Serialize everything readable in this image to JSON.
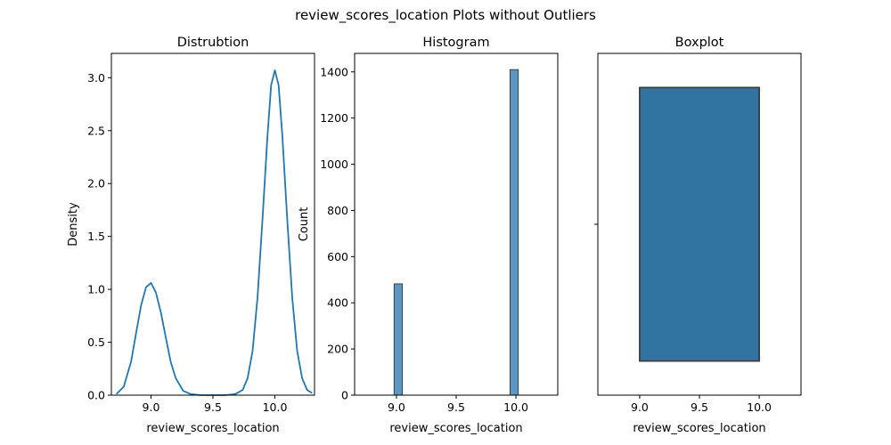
{
  "figure": {
    "title": "review_scores_location Plots without Outliers"
  },
  "colors": {
    "line": "#1f77b4",
    "hist_fill": "#5a96c1",
    "hist_edge": "#2b2b2b",
    "box_fill": "#3274a1",
    "box_edge": "#3f3f3f",
    "axes": "#000000"
  },
  "chart_data": [
    {
      "type": "line",
      "title": "Distrubtion",
      "xlabel": "review_scores_location",
      "ylabel": "Density",
      "xlim": [
        8.68,
        10.32
      ],
      "ylim": [
        0,
        3.23
      ],
      "xticks": [
        9.0,
        9.5,
        10.0
      ],
      "xtick_labels": [
        "9.0",
        "9.5",
        "10.0"
      ],
      "yticks": [
        0,
        0.5,
        1.0,
        1.5,
        2.0,
        2.5,
        3.0
      ],
      "ytick_labels": [
        "0.0",
        "0.5",
        "1.0",
        "1.5",
        "2.0",
        "2.5",
        "3.0"
      ],
      "series": [
        {
          "x": [
            8.72,
            8.78,
            8.84,
            8.88,
            8.92,
            8.96,
            9.0,
            9.04,
            9.08,
            9.12,
            9.16,
            9.2,
            9.26,
            9.32,
            9.4,
            9.5,
            9.6,
            9.68,
            9.74,
            9.78,
            9.82,
            9.86,
            9.9,
            9.94,
            9.97,
            10.0,
            10.03,
            10.06,
            10.1,
            10.14,
            10.18,
            10.22,
            10.26,
            10.3
          ],
          "y": [
            0.01,
            0.08,
            0.32,
            0.59,
            0.85,
            1.02,
            1.06,
            0.97,
            0.78,
            0.54,
            0.31,
            0.16,
            0.04,
            0.01,
            0.0,
            0.0,
            0.0,
            0.01,
            0.05,
            0.16,
            0.42,
            0.92,
            1.66,
            2.45,
            2.93,
            3.07,
            2.93,
            2.45,
            1.66,
            0.92,
            0.42,
            0.16,
            0.05,
            0.02
          ]
        }
      ]
    },
    {
      "type": "bar",
      "title": "Histogram",
      "xlabel": "review_scores_location",
      "ylabel": "Count",
      "xlim": [
        8.65,
        10.35
      ],
      "ylim": [
        0,
        1480
      ],
      "xticks": [
        9.0,
        9.5,
        10.0
      ],
      "xtick_labels": [
        "9.0",
        "9.5",
        "10.0"
      ],
      "yticks": [
        0,
        200,
        400,
        600,
        800,
        1000,
        1200,
        1400
      ],
      "ytick_labels": [
        "0",
        "200",
        "400",
        "600",
        "800",
        "1000",
        "1200",
        "1400"
      ],
      "bars": [
        {
          "x0": 8.98,
          "x1": 9.05,
          "value": 482
        },
        {
          "x0": 9.95,
          "x1": 10.02,
          "value": 1410
        }
      ]
    },
    {
      "type": "box",
      "title": "Boxplot",
      "xlabel": "review_scores_location",
      "xlim": [
        8.65,
        10.35
      ],
      "xticks": [
        9.0,
        9.5,
        10.0
      ],
      "xtick_labels": [
        "9.0",
        "9.5",
        "10.0"
      ],
      "box": {
        "q1": 9.0,
        "median": 10.0,
        "q3": 10.0,
        "whisker_low": 9.0,
        "whisker_high": 10.0
      }
    }
  ]
}
